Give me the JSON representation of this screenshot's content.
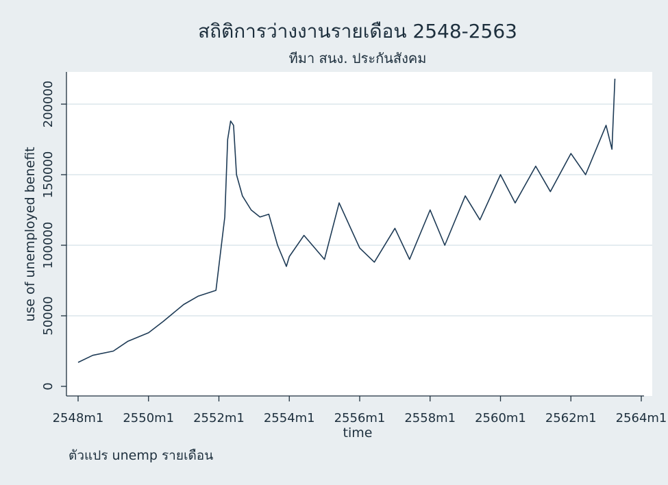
{
  "chart_data": {
    "type": "line",
    "title": "สถิติการว่างงานรายเดือน 2548-2563",
    "subtitle": "ทีมา สนง. ประกันสังคม",
    "xlabel": "time",
    "ylabel": "use of unemployed benefit",
    "note": "ตัวแปร unemp รายเดือน",
    "xlim": [
      "2548m1",
      "2564m1"
    ],
    "ylim": [
      0,
      200000
    ],
    "x_ticks": [
      "2548m1",
      "2550m1",
      "2552m1",
      "2554m1",
      "2556m1",
      "2558m1",
      "2560m1",
      "2562m1",
      "2564m1"
    ],
    "y_ticks": [
      0,
      50000,
      100000,
      150000,
      200000
    ],
    "grid": true,
    "series": [
      {
        "color": "#1d3a55",
        "x": [
          "2548m1",
          "2548m6",
          "2549m1",
          "2549m6",
          "2550m1",
          "2550m6",
          "2551m1",
          "2551m6",
          "2551m12",
          "2552m3",
          "2552m4",
          "2552m5",
          "2552m6",
          "2552m7",
          "2552m9",
          "2552m12",
          "2553m3",
          "2553m6",
          "2553m9",
          "2553m12",
          "2554m1",
          "2554m6",
          "2555m1",
          "2555m6",
          "2556m1",
          "2556m6",
          "2557m1",
          "2557m6",
          "2558m1",
          "2558m6",
          "2559m1",
          "2559m6",
          "2560m1",
          "2560m6",
          "2561m1",
          "2561m6",
          "2562m1",
          "2562m6",
          "2563m1",
          "2563m3",
          "2563m4"
        ],
        "y": [
          17000,
          22000,
          25000,
          32000,
          38000,
          46000,
          58000,
          64000,
          68000,
          120000,
          175000,
          188000,
          185000,
          150000,
          135000,
          125000,
          120000,
          122000,
          100000,
          85000,
          92000,
          107000,
          90000,
          130000,
          98000,
          88000,
          112000,
          90000,
          125000,
          100000,
          135000,
          118000,
          150000,
          130000,
          156000,
          138000,
          165000,
          150000,
          185000,
          168000,
          218000
        ]
      }
    ]
  }
}
